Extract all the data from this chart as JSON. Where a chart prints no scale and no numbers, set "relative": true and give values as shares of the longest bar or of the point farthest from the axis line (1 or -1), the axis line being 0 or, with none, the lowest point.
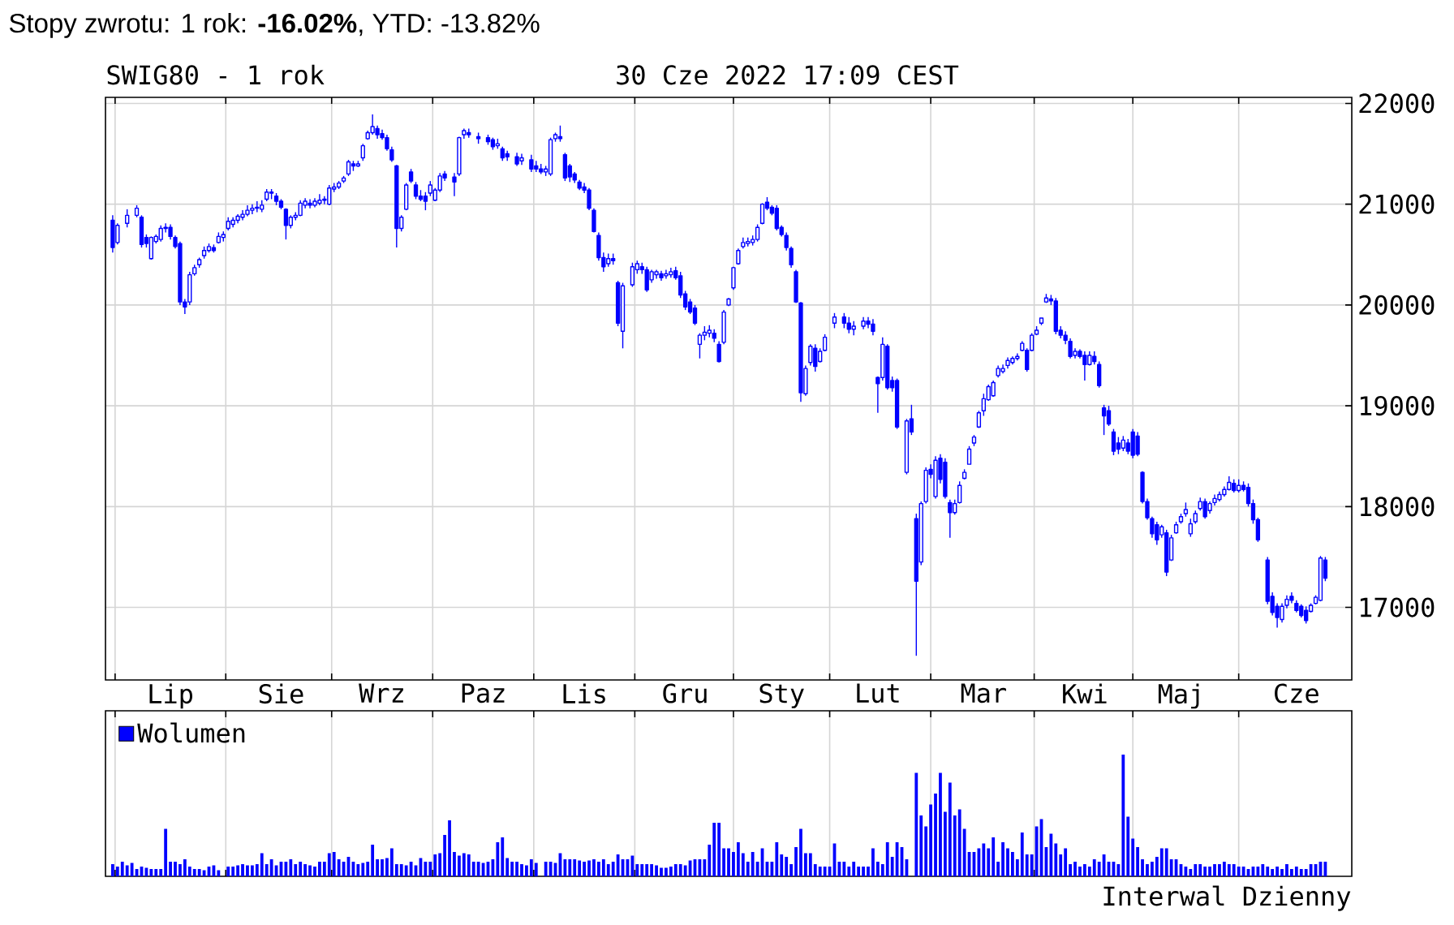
{
  "chart_data": [
    {
      "type": "candlestick",
      "title": "Stopy zwrotu: 1 rok: **-16.02%**, YTD: -13.82%",
      "subtitle": "SWIG80 - 1 rok",
      "annotations": [
        "30 Cze 2022 17:09 CEST"
      ],
      "color": "#0000ff",
      "categories": [
        null,
        null,
        null,
        null,
        null,
        null,
        null,
        null,
        null,
        null,
        null,
        null,
        null,
        "Lip",
        null,
        null,
        null,
        null,
        null,
        null,
        null,
        null,
        null,
        null,
        null,
        null,
        null,
        null,
        null,
        null,
        null,
        null,
        null,
        null,
        null,
        null,
        "Sie",
        null,
        null,
        null,
        null,
        null,
        null,
        null,
        null,
        null,
        null,
        null,
        null,
        null,
        null,
        null,
        null,
        null,
        null,
        null,
        null,
        "Wrz",
        null,
        null,
        null,
        null,
        null,
        null,
        null,
        null,
        null,
        null,
        null,
        null,
        null,
        null,
        null,
        null,
        null,
        null,
        null,
        null,
        "Paz",
        null,
        null,
        null,
        null,
        null,
        null,
        null,
        null,
        null,
        null,
        null,
        null,
        null,
        null,
        null,
        null,
        null,
        null,
        null,
        null,
        "Lis",
        null,
        null,
        null,
        null,
        null,
        null,
        null,
        null,
        null,
        null,
        null,
        null,
        null,
        null,
        null,
        null,
        null,
        null,
        null,
        null,
        "Gru",
        null,
        null,
        null,
        null,
        null,
        null,
        null,
        null,
        null,
        null,
        null,
        null,
        null,
        null,
        null,
        null,
        null,
        null,
        null,
        "Sty",
        null,
        null,
        null,
        null,
        null,
        null,
        null,
        null,
        null,
        null,
        null,
        null,
        null,
        null,
        null,
        null,
        null,
        null,
        null,
        "Lut",
        null,
        null,
        null,
        null,
        null,
        null,
        null,
        null,
        null,
        null,
        null,
        null,
        null,
        null,
        null,
        null,
        null,
        null,
        null,
        null,
        null,
        "Mar",
        null,
        null,
        null,
        null,
        null,
        null,
        null,
        null,
        null,
        null,
        null,
        null,
        null,
        null,
        null,
        null,
        null,
        null,
        null,
        null,
        "Kwi",
        null,
        null,
        null,
        null,
        null,
        null,
        null,
        null,
        null,
        null,
        null,
        null,
        null,
        null,
        null,
        null,
        null,
        null,
        null,
        "Maj",
        null,
        null,
        null,
        null,
        null,
        null,
        null,
        null,
        null,
        null,
        null,
        null,
        null,
        null,
        null,
        null,
        null,
        null,
        null,
        null,
        null,
        null,
        null,
        "Cze",
        null,
        null,
        null,
        null,
        null,
        null,
        null,
        null,
        null,
        null,
        null
      ],
      "ohlc": [
        null,
        [
          20840,
          20890,
          20520,
          20570
        ],
        [
          20620,
          20810,
          20600,
          20790
        ],
        null,
        [
          20810,
          20950,
          20770,
          20890
        ],
        null,
        [
          20890,
          20990,
          20870,
          20960
        ],
        [
          20870,
          20890,
          20570,
          20600
        ],
        [
          20670,
          20700,
          20570,
          20610
        ],
        [
          20460,
          20680,
          20450,
          20670
        ],
        [
          20630,
          20700,
          20610,
          20680
        ],
        [
          20650,
          20790,
          20630,
          20760
        ],
        [
          20770,
          20810,
          20720,
          20760
        ],
        [
          20770,
          20800,
          20650,
          20680
        ],
        [
          20670,
          20690,
          20560,
          20580
        ],
        [
          20610,
          20630,
          20000,
          20030
        ],
        [
          20030,
          20060,
          19910,
          19980
        ],
        [
          20030,
          20330,
          20000,
          20300
        ],
        [
          20310,
          20400,
          20290,
          20370
        ],
        [
          20400,
          20470,
          20370,
          20450
        ],
        [
          20490,
          20580,
          20460,
          20540
        ],
        [
          20540,
          20610,
          20520,
          20580
        ],
        [
          20570,
          20600,
          20520,
          20540
        ],
        [
          20620,
          20720,
          20610,
          20680
        ],
        [
          20670,
          20730,
          20630,
          20700
        ],
        [
          20760,
          20870,
          20740,
          20830
        ],
        [
          20800,
          20870,
          20770,
          20840
        ],
        [
          20840,
          20900,
          20810,
          20880
        ],
        [
          20870,
          20940,
          20840,
          20900
        ],
        [
          20900,
          20990,
          20880,
          20940
        ],
        [
          20940,
          21000,
          20900,
          20960
        ],
        [
          20960,
          21030,
          20920,
          20970
        ],
        [
          20950,
          21040,
          20920,
          20990
        ],
        [
          21050,
          21150,
          21030,
          21120
        ],
        [
          21120,
          21150,
          21050,
          21110
        ],
        [
          21080,
          21110,
          20990,
          21030
        ],
        [
          21030,
          21050,
          20950,
          20970
        ],
        [
          20950,
          20960,
          20650,
          20790
        ],
        [
          20790,
          20890,
          20760,
          20870
        ],
        [
          20870,
          20920,
          20840,
          20890
        ],
        [
          20890,
          21040,
          20880,
          21010
        ],
        [
          20990,
          21060,
          20960,
          21030
        ],
        [
          21010,
          21050,
          20960,
          20990
        ],
        [
          20990,
          21060,
          20970,
          21030
        ],
        [
          21010,
          21100,
          20990,
          21040
        ],
        [
          21040,
          21080,
          21000,
          21050
        ],
        [
          21000,
          21190,
          20990,
          21160
        ],
        [
          21150,
          21210,
          21120,
          21170
        ],
        [
          21170,
          21230,
          21150,
          21210
        ],
        [
          21230,
          21280,
          21210,
          21260
        ],
        [
          21300,
          21440,
          21280,
          21420
        ],
        [
          21400,
          21430,
          21330,
          21380
        ],
        [
          21380,
          21430,
          21370,
          21400
        ],
        [
          21460,
          21600,
          21430,
          21580
        ],
        [
          21650,
          21730,
          21640,
          21710
        ],
        [
          21710,
          21890,
          21690,
          21770
        ],
        [
          21750,
          21780,
          21650,
          21690
        ],
        [
          21700,
          21740,
          21640,
          21660
        ],
        [
          21660,
          21690,
          21530,
          21550
        ],
        [
          21540,
          21570,
          21420,
          21440
        ],
        [
          21380,
          21390,
          20570,
          20760
        ],
        [
          20760,
          20890,
          20730,
          20870
        ],
        [
          20950,
          21210,
          20940,
          21190
        ],
        [
          21320,
          21350,
          21210,
          21230
        ],
        [
          21190,
          21220,
          21050,
          21080
        ],
        [
          21080,
          21140,
          21030,
          21050
        ],
        [
          21080,
          21120,
          20940,
          21030
        ],
        [
          21110,
          21230,
          21080,
          21190
        ],
        [
          21040,
          21160,
          21030,
          21140
        ],
        [
          21140,
          21310,
          21120,
          21280
        ],
        [
          21300,
          21330,
          21230,
          21260
        ],
        null,
        [
          21270,
          21310,
          21080,
          21220
        ],
        [
          21300,
          21670,
          21280,
          21660
        ],
        [
          21690,
          21750,
          21650,
          21730
        ],
        [
          21710,
          21750,
          21660,
          21690
        ],
        null,
        [
          21670,
          21710,
          21600,
          21650
        ],
        null,
        [
          21660,
          21690,
          21590,
          21620
        ],
        [
          21640,
          21660,
          21540,
          21570
        ],
        [
          21580,
          21650,
          21550,
          21600
        ],
        [
          21550,
          21570,
          21430,
          21460
        ],
        [
          21500,
          21530,
          21430,
          21470
        ],
        null,
        [
          21470,
          21510,
          21380,
          21400
        ],
        [
          21430,
          21500,
          21390,
          21460
        ],
        null,
        [
          21440,
          21490,
          21320,
          21350
        ],
        [
          21380,
          21430,
          21320,
          21350
        ],
        [
          21350,
          21400,
          21300,
          21320
        ],
        [
          21320,
          21380,
          21280,
          21350
        ],
        [
          21300,
          21660,
          21280,
          21640
        ],
        [
          21650,
          21710,
          21620,
          21690
        ],
        [
          21670,
          21780,
          21620,
          21650
        ],
        [
          21490,
          21510,
          21230,
          21260
        ],
        [
          21380,
          21400,
          21220,
          21270
        ],
        [
          21300,
          21320,
          21210,
          21240
        ],
        [
          21220,
          21240,
          21140,
          21160
        ],
        [
          21170,
          21210,
          21110,
          21140
        ],
        [
          21140,
          21160,
          20940,
          20960
        ],
        [
          20940,
          20960,
          20720,
          20730
        ],
        [
          20690,
          20720,
          20440,
          20470
        ],
        [
          20470,
          20520,
          20330,
          20380
        ],
        [
          20410,
          20510,
          20380,
          20460
        ],
        [
          20460,
          20510,
          20400,
          20440
        ],
        [
          20220,
          20240,
          19790,
          19820
        ],
        [
          19740,
          20220,
          19570,
          20190
        ],
        null,
        [
          20200,
          20420,
          20180,
          20380
        ],
        [
          20350,
          20440,
          20310,
          20410
        ],
        [
          20380,
          20420,
          20310,
          20350
        ],
        [
          20350,
          20380,
          20130,
          20150
        ],
        [
          20250,
          20350,
          20220,
          20330
        ],
        [
          20300,
          20350,
          20260,
          20330
        ],
        [
          20310,
          20340,
          20240,
          20270
        ],
        [
          20290,
          20350,
          20260,
          20310
        ],
        [
          20300,
          20370,
          20270,
          20330
        ],
        [
          20340,
          20380,
          20250,
          20270
        ],
        [
          20290,
          20330,
          20070,
          20100
        ],
        [
          20110,
          20140,
          19950,
          19980
        ],
        [
          20030,
          20060,
          19910,
          19930
        ],
        [
          19970,
          20000,
          19800,
          19820
        ],
        [
          19610,
          19720,
          19470,
          19700
        ],
        [
          19700,
          19790,
          19650,
          19730
        ],
        [
          19720,
          19800,
          19680,
          19750
        ],
        [
          19720,
          19760,
          19630,
          19670
        ],
        [
          19610,
          19640,
          19430,
          19440
        ],
        [
          19630,
          19950,
          19610,
          19930
        ],
        [
          20000,
          20070,
          19990,
          20060
        ],
        [
          20170,
          20380,
          20150,
          20370
        ],
        [
          20410,
          20560,
          20400,
          20540
        ],
        [
          20580,
          20670,
          20560,
          20620
        ],
        [
          20610,
          20670,
          20580,
          20630
        ],
        [
          20620,
          20690,
          20590,
          20650
        ],
        [
          20650,
          20800,
          20630,
          20770
        ],
        [
          20810,
          21010,
          20800,
          21000
        ],
        [
          21020,
          21070,
          20940,
          20960
        ],
        [
          20970,
          20990,
          20890,
          20910
        ],
        [
          20960,
          20990,
          20740,
          20760
        ],
        [
          20770,
          20790,
          20680,
          20700
        ],
        [
          20690,
          20720,
          20540,
          20570
        ],
        [
          20560,
          20580,
          20370,
          20400
        ],
        [
          20330,
          20350,
          20020,
          20030
        ],
        [
          20020,
          20030,
          19040,
          19130
        ],
        [
          19120,
          19400,
          19100,
          19370
        ],
        [
          19430,
          19610,
          19400,
          19590
        ],
        [
          19570,
          19610,
          19340,
          19390
        ],
        [
          19440,
          19570,
          19430,
          19540
        ],
        [
          19550,
          19710,
          19540,
          19680
        ],
        null,
        [
          19820,
          19920,
          19770,
          19880
        ],
        null,
        [
          19880,
          19920,
          19770,
          19820
        ],
        [
          19820,
          19880,
          19720,
          19760
        ],
        [
          19760,
          19840,
          19700,
          19790
        ],
        null,
        [
          19790,
          19880,
          19760,
          19840
        ],
        [
          19840,
          19880,
          19770,
          19810
        ],
        [
          19810,
          19860,
          19700,
          19740
        ],
        [
          19280,
          19290,
          18930,
          19220
        ],
        [
          19280,
          19680,
          19250,
          19610
        ],
        [
          19590,
          19610,
          19160,
          19180
        ],
        [
          19250,
          19290,
          19140,
          19180
        ],
        [
          19250,
          19270,
          18770,
          18790
        ],
        null,
        [
          18340,
          18870,
          18320,
          18850
        ],
        [
          18870,
          19010,
          18710,
          18740
        ],
        [
          17880,
          17930,
          16520,
          17260
        ],
        [
          17450,
          18050,
          17420,
          18030
        ],
        [
          18050,
          18390,
          18030,
          18360
        ],
        [
          18370,
          18420,
          18280,
          18320
        ],
        [
          18100,
          18500,
          18080,
          18460
        ],
        [
          18480,
          18520,
          18230,
          18270
        ],
        [
          18440,
          18480,
          18080,
          18100
        ],
        [
          18040,
          18070,
          17690,
          17940
        ],
        [
          17940,
          18070,
          17920,
          18030
        ],
        [
          18040,
          18250,
          18030,
          18210
        ],
        [
          18280,
          18370,
          18270,
          18340
        ],
        [
          18420,
          18600,
          18420,
          18570
        ],
        [
          18630,
          18710,
          18600,
          18690
        ],
        [
          18790,
          18950,
          18780,
          18930
        ],
        [
          18950,
          19120,
          18900,
          19070
        ],
        [
          19060,
          19210,
          19050,
          19190
        ],
        [
          19100,
          19250,
          19090,
          19230
        ],
        [
          19300,
          19400,
          19280,
          19370
        ],
        [
          19340,
          19410,
          19320,
          19370
        ],
        [
          19400,
          19480,
          19370,
          19450
        ],
        [
          19430,
          19490,
          19410,
          19470
        ],
        [
          19470,
          19520,
          19450,
          19490
        ],
        [
          19550,
          19640,
          19540,
          19620
        ],
        [
          19550,
          19570,
          19340,
          19360
        ],
        [
          19550,
          19720,
          19540,
          19700
        ],
        [
          19710,
          19790,
          19700,
          19750
        ],
        [
          19820,
          19870,
          19800,
          19870
        ],
        [
          20030,
          20110,
          20020,
          20070
        ],
        [
          20060,
          20100,
          20000,
          20040
        ],
        [
          20040,
          20070,
          19710,
          19740
        ],
        [
          19750,
          19790,
          19670,
          19700
        ],
        [
          19700,
          19740,
          19610,
          19650
        ],
        [
          19640,
          19670,
          19470,
          19490
        ],
        [
          19500,
          19570,
          19470,
          19540
        ],
        [
          19540,
          19560,
          19470,
          19490
        ],
        [
          19500,
          19540,
          19250,
          19410
        ],
        [
          19410,
          19540,
          19400,
          19500
        ],
        [
          19490,
          19540,
          19410,
          19440
        ],
        [
          19410,
          19440,
          19180,
          19200
        ],
        [
          18980,
          19010,
          18710,
          18900
        ],
        [
          18950,
          19000,
          18800,
          18820
        ],
        [
          18740,
          18770,
          18510,
          18550
        ],
        [
          18630,
          18690,
          18520,
          18570
        ],
        [
          18580,
          18700,
          18550,
          18660
        ],
        [
          18630,
          18670,
          18520,
          18550
        ],
        [
          18740,
          18770,
          18480,
          18510
        ],
        [
          18700,
          18740,
          18500,
          18520
        ],
        [
          18340,
          18350,
          18030,
          18050
        ],
        [
          18050,
          18080,
          17870,
          17890
        ],
        [
          17880,
          17900,
          17690,
          17730
        ],
        [
          17820,
          17850,
          17620,
          17670
        ],
        [
          17720,
          17820,
          17690,
          17800
        ],
        [
          17740,
          17770,
          17310,
          17350
        ],
        [
          17470,
          17720,
          17460,
          17690
        ],
        [
          17740,
          17850,
          17730,
          17820
        ],
        [
          17850,
          17930,
          17830,
          17900
        ],
        [
          17930,
          18040,
          17900,
          17970
        ],
        [
          17730,
          17880,
          17700,
          17830
        ],
        [
          17850,
          17960,
          17830,
          17930
        ],
        [
          17980,
          18090,
          17960,
          18050
        ],
        [
          18050,
          18080,
          17880,
          17900
        ],
        [
          17960,
          18050,
          17930,
          18030
        ],
        [
          18040,
          18120,
          18010,
          18080
        ],
        [
          18070,
          18150,
          18050,
          18120
        ],
        [
          18120,
          18200,
          18100,
          18170
        ],
        [
          18170,
          18300,
          18160,
          18240
        ],
        [
          18230,
          18270,
          18140,
          18160
        ],
        [
          18160,
          18270,
          18140,
          18210
        ],
        [
          18210,
          18250,
          18150,
          18170
        ],
        [
          18190,
          18230,
          18000,
          18030
        ],
        [
          18030,
          18070,
          17830,
          17870
        ],
        [
          17870,
          17890,
          17650,
          17670
        ],
        null,
        [
          17470,
          17500,
          17030,
          17060
        ],
        [
          17110,
          17150,
          16920,
          16950
        ],
        [
          17010,
          17040,
          16800,
          16900
        ],
        [
          16880,
          17040,
          16850,
          17010
        ],
        [
          17020,
          17120,
          16990,
          17080
        ],
        [
          17110,
          17150,
          17040,
          17070
        ],
        [
          17040,
          17070,
          16950,
          16970
        ],
        [
          17010,
          17030,
          16900,
          16920
        ],
        [
          16970,
          17010,
          16840,
          16870
        ],
        [
          16960,
          17040,
          16950,
          17020
        ],
        [
          17040,
          17120,
          17030,
          17100
        ],
        [
          17070,
          17510,
          17060,
          17490
        ],
        [
          17470,
          17500,
          17260,
          17290
        ],
        null,
        null,
        null,
        null,
        null
      ],
      "ylim": [
        16280,
        22060
      ],
      "yticks": [
        17000,
        18000,
        19000,
        20000,
        21000,
        22000
      ],
      "grid": true
    },
    {
      "type": "bar",
      "relative": true,
      "legend": "top left",
      "grid": "x",
      "tick_labels": false,
      "annotations": [
        "Interwal Dzienny"
      ],
      "categories": [
        null,
        null,
        null,
        null,
        null,
        null,
        null,
        null,
        null,
        null,
        null,
        null,
        null,
        null,
        null,
        null,
        null,
        null,
        null,
        null,
        null,
        null,
        null,
        null,
        null,
        null,
        null,
        null,
        null,
        null,
        null,
        null,
        null,
        null,
        null,
        null,
        null,
        null,
        null,
        null,
        null,
        null,
        null,
        null,
        null,
        null,
        null,
        null,
        null,
        null,
        null,
        null,
        null,
        null,
        null,
        null,
        null,
        null,
        null,
        null,
        null,
        null,
        null,
        null,
        null,
        null,
        null,
        null,
        null,
        null,
        null,
        null,
        null,
        null,
        null,
        null,
        null,
        null,
        null,
        null,
        null,
        null,
        null,
        null,
        null,
        null,
        null,
        null,
        null,
        null,
        null,
        null,
        null,
        null,
        null,
        null,
        null,
        null,
        null,
        null,
        null,
        null,
        null,
        null,
        null,
        null,
        null,
        null,
        null,
        null,
        null,
        null,
        null,
        null,
        null,
        null,
        null,
        null,
        null,
        null,
        null,
        null,
        null,
        null,
        null,
        null,
        null,
        null,
        null,
        null,
        null,
        null,
        null,
        null,
        null,
        null,
        null,
        null,
        null,
        null,
        null,
        null,
        null,
        null,
        null,
        null,
        null,
        null,
        null,
        null,
        null,
        null,
        null,
        null,
        null,
        null,
        null,
        null,
        null,
        null,
        null,
        null,
        null,
        null,
        null,
        null,
        null,
        null,
        null,
        null,
        null,
        null,
        null,
        null,
        null,
        null,
        null,
        null,
        null,
        null,
        null,
        null,
        null,
        null,
        null,
        null,
        null,
        null,
        null,
        null,
        null,
        null,
        null,
        null,
        null,
        null,
        null,
        null,
        null,
        null,
        null,
        null,
        null,
        null,
        null,
        null,
        null,
        null,
        null,
        null,
        null,
        null,
        null,
        null,
        null,
        null,
        null,
        null,
        null,
        null,
        null,
        null,
        null,
        null,
        null,
        null,
        null,
        null,
        null,
        null,
        null,
        null,
        null,
        null,
        null,
        null,
        null,
        null,
        null,
        null,
        null,
        null,
        null,
        null,
        null,
        null,
        null,
        null,
        null,
        null,
        null,
        null,
        null,
        null,
        null,
        null,
        null,
        null,
        null
      ],
      "series": [
        {
          "name": "Wolumen",
          "color": "#0000ff",
          "values": [
            null,
            0.1,
            0.08,
            0.12,
            0.09,
            0.11,
            0.06,
            0.08,
            0.07,
            0.06,
            0.06,
            0.06,
            0.39,
            0.12,
            0.12,
            0.1,
            0.14,
            0.08,
            0.06,
            0.06,
            0.05,
            0.08,
            0.09,
            0.05,
            null,
            0.08,
            0.08,
            0.09,
            0.1,
            0.09,
            0.09,
            0.1,
            0.19,
            0.1,
            0.14,
            0.09,
            0.12,
            0.12,
            0.14,
            0.1,
            0.12,
            0.1,
            0.09,
            0.08,
            0.12,
            0.12,
            0.19,
            0.2,
            0.14,
            0.12,
            0.16,
            0.12,
            0.1,
            0.11,
            0.12,
            0.26,
            0.14,
            0.14,
            0.15,
            0.23,
            0.1,
            0.1,
            0.09,
            0.12,
            0.09,
            0.15,
            0.12,
            0.12,
            0.18,
            0.19,
            0.34,
            0.46,
            0.2,
            0.17,
            0.19,
            0.18,
            0.12,
            0.12,
            0.11,
            0.12,
            0.14,
            0.28,
            0.32,
            0.15,
            0.12,
            0.12,
            0.1,
            0.09,
            0.14,
            0.11,
            null,
            0.12,
            0.12,
            0.11,
            0.19,
            0.14,
            0.14,
            0.14,
            0.13,
            0.12,
            0.13,
            0.14,
            0.12,
            0.14,
            0.1,
            0.12,
            0.18,
            0.14,
            0.14,
            0.17,
            0.1,
            0.1,
            0.1,
            0.1,
            0.09,
            0.07,
            0.07,
            0.08,
            0.1,
            0.1,
            0.09,
            0.13,
            0.14,
            0.14,
            0.14,
            0.26,
            0.44,
            0.44,
            0.23,
            0.23,
            0.2,
            0.28,
            0.19,
            0.12,
            0.2,
            0.12,
            0.23,
            0.12,
            0.12,
            0.28,
            0.18,
            0.16,
            0.1,
            0.24,
            0.39,
            0.19,
            0.19,
            0.1,
            0.08,
            0.08,
            0.08,
            0.27,
            0.12,
            0.12,
            0.08,
            0.12,
            0.08,
            0.08,
            0.08,
            0.23,
            0.12,
            0.1,
            0.28,
            0.16,
            0.28,
            0.24,
            0.14,
            null,
            0.85,
            0.5,
            0.41,
            0.59,
            0.68,
            0.85,
            0.53,
            0.77,
            0.5,
            0.55,
            0.39,
            0.2,
            0.2,
            0.23,
            0.27,
            0.23,
            0.32,
            0.12,
            0.28,
            0.23,
            0.2,
            0.14,
            0.36,
            0.18,
            0.18,
            0.41,
            0.47,
            0.24,
            0.35,
            0.27,
            0.18,
            0.23,
            0.1,
            0.12,
            0.08,
            0.1,
            0.08,
            0.14,
            0.12,
            0.18,
            0.12,
            0.12,
            0.1,
            1.0,
            0.49,
            0.31,
            0.24,
            0.14,
            0.1,
            0.12,
            0.16,
            0.23,
            0.23,
            0.14,
            0.14,
            0.1,
            0.08,
            0.06,
            0.1,
            0.1,
            0.08,
            0.08,
            0.1,
            0.1,
            0.12,
            0.1,
            0.1,
            0.08,
            0.08,
            0.06,
            0.08,
            0.08,
            0.1,
            0.08,
            0.06,
            0.08,
            0.06,
            0.1,
            0.06,
            0.08,
            0.06,
            0.06,
            0.1,
            0.1,
            0.12,
            0.12,
            null,
            null,
            null,
            null,
            null
          ]
        }
      ]
    }
  ]
}
